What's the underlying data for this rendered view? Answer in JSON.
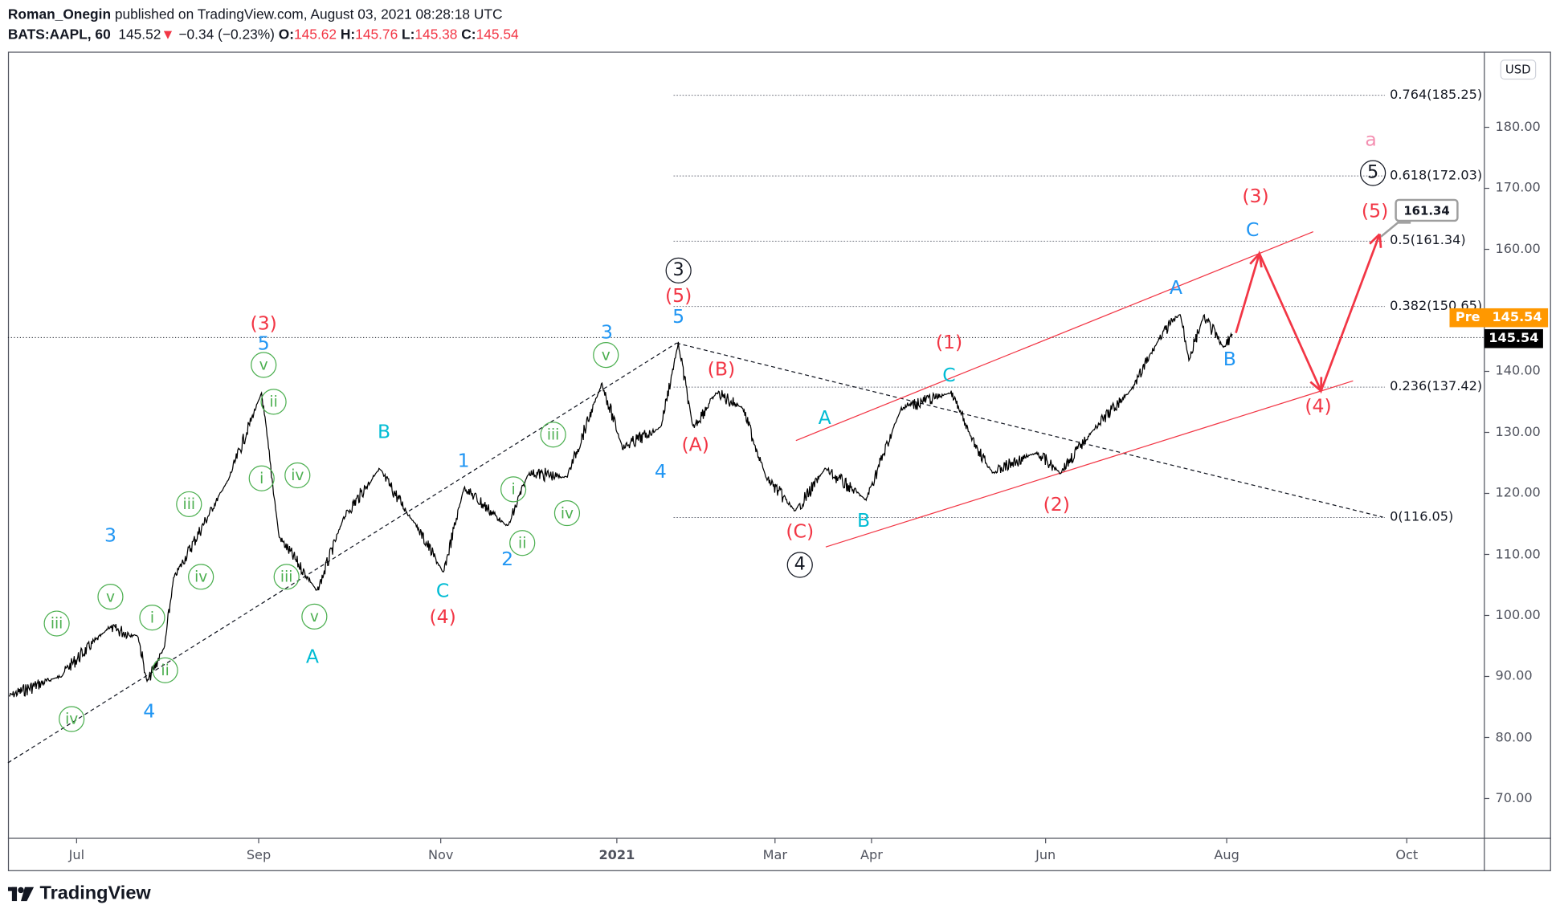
{
  "header": {
    "author": "Roman_Onegin",
    "published": "published on TradingView.com, August 03, 2021 08:28:18 UTC",
    "symbol": "BATS:AAPL, 60",
    "price": "145.52",
    "change": "−0.34 (−0.23%)",
    "o_label": "O:",
    "o": "145.62",
    "h_label": "H:",
    "h": "145.76",
    "l_label": "L:",
    "l": "145.38",
    "c_label": "C:",
    "c": "145.54"
  },
  "price_axis": {
    "currency": "USD",
    "ticks": [
      "180.00",
      "170.00",
      "160.00",
      "140.00",
      "130.00",
      "120.00",
      "110.00",
      "100.00",
      "90.00",
      "80.00",
      "70.00"
    ],
    "pre_label": "Pre",
    "pre_price": "145.54",
    "last_price": "145.54"
  },
  "time_axis": {
    "ticks": [
      "Jul",
      "Sep",
      "Nov",
      "2021",
      "Mar",
      "Apr",
      "Jun",
      "Aug",
      "Oct"
    ]
  },
  "callout": "161.34",
  "brand": "TradingView",
  "colors": {
    "red": "#f23645",
    "blue": "#2196f3",
    "teal": "#00bcd4",
    "green": "#4caf50",
    "black": "#131722",
    "pink": "#f48fb1",
    "orange": "#ff9800"
  },
  "chart_data": {
    "type": "line",
    "title": "BATS:AAPL, 60",
    "ylabel": "USD",
    "ylim": [
      65,
      195
    ],
    "xlim": [
      "2020-06-06",
      "2021-10-30"
    ],
    "price_series": [
      [
        "2020-06-08",
        86.8
      ],
      [
        "2020-06-25",
        90
      ],
      [
        "2020-07-12",
        98
      ],
      [
        "2020-07-22",
        96.6
      ],
      [
        "2020-07-25",
        89
      ],
      [
        "2020-07-31",
        95
      ],
      [
        "2020-08-03",
        106
      ],
      [
        "2020-08-22",
        122.6
      ],
      [
        "2020-09-02",
        136.5
      ],
      [
        "2020-09-08",
        112.9
      ],
      [
        "2020-09-21",
        104
      ],
      [
        "2020-09-30",
        116
      ],
      [
        "2020-10-12",
        124
      ],
      [
        "2020-10-25",
        114.5
      ],
      [
        "2020-11-03",
        107
      ],
      [
        "2020-11-10",
        121
      ],
      [
        "2020-11-25",
        114.5
      ],
      [
        "2020-12-02",
        123.4
      ],
      [
        "2020-12-15",
        122.6
      ],
      [
        "2020-12-27",
        138
      ],
      [
        "2021-01-03",
        127.5
      ],
      [
        "2021-01-16",
        130.8
      ],
      [
        "2021-01-22",
        144.6
      ],
      [
        "2021-01-27",
        130.8
      ],
      [
        "2021-02-04",
        136.5
      ],
      [
        "2021-02-13",
        134
      ],
      [
        "2021-02-21",
        122.6
      ],
      [
        "2021-03-03",
        117
      ],
      [
        "2021-03-13",
        124
      ],
      [
        "2021-03-27",
        119
      ],
      [
        "2021-04-08",
        134
      ],
      [
        "2021-04-25",
        136.5
      ],
      [
        "2021-05-02",
        129
      ],
      [
        "2021-05-09",
        123.4
      ],
      [
        "2021-05-24",
        126.7
      ],
      [
        "2021-06-01",
        123.4
      ],
      [
        "2021-06-13",
        130.8
      ],
      [
        "2021-06-26",
        137.3
      ],
      [
        "2021-07-05",
        145.5
      ],
      [
        "2021-07-12",
        149.5
      ],
      [
        "2021-07-15",
        142
      ],
      [
        "2021-07-20",
        149
      ],
      [
        "2021-07-27",
        143.8
      ],
      [
        "2021-07-30",
        146.3
      ]
    ],
    "fib_levels": [
      {
        "label": "0.764(185.25)",
        "price": 185.25
      },
      {
        "label": "0.618(172.03)",
        "price": 172.03
      },
      {
        "label": "0.5(161.34)",
        "price": 161.34
      },
      {
        "label": "0.382(150.65)",
        "price": 150.65
      },
      {
        "label": "0.236(137.42)",
        "price": 137.42
      },
      {
        "label": "0(116.05)",
        "price": 116.05
      }
    ],
    "current_price_line": 145.54,
    "forecast_path": [
      [
        "2021-07-31",
        146.3
      ],
      [
        "2021-08-08",
        159.3
      ],
      [
        "2021-08-29",
        136.8
      ],
      [
        "2021-09-18",
        162.5
      ]
    ],
    "wave_labels": [
      {
        "text": "(3)",
        "color": "red"
      },
      {
        "text": "5",
        "color": "blue"
      },
      {
        "text": "v",
        "color": "green",
        "circled": true
      },
      {
        "text": "ii",
        "color": "green",
        "circled": true
      },
      {
        "text": "i",
        "color": "green",
        "circled": true
      },
      {
        "text": "iv",
        "color": "green",
        "circled": true
      },
      {
        "text": "iii",
        "color": "green",
        "circled": true
      },
      {
        "text": "v",
        "color": "green",
        "circled": true
      },
      {
        "text": "A",
        "color": "teal"
      },
      {
        "text": "B",
        "color": "teal"
      },
      {
        "text": "C",
        "color": "teal"
      },
      {
        "text": "(4)",
        "color": "red"
      },
      {
        "text": "1",
        "color": "blue"
      },
      {
        "text": "2",
        "color": "blue"
      },
      {
        "text": "i",
        "color": "green",
        "circled": true
      },
      {
        "text": "ii",
        "color": "green",
        "circled": true
      },
      {
        "text": "iii",
        "color": "green",
        "circled": true
      },
      {
        "text": "iv",
        "color": "green",
        "circled": true
      },
      {
        "text": "3",
        "color": "blue"
      },
      {
        "text": "v",
        "color": "green",
        "circled": true
      },
      {
        "text": "4",
        "color": "blue"
      },
      {
        "text": "3",
        "color": "blue"
      },
      {
        "text": "v",
        "color": "green",
        "circled": true
      },
      {
        "text": "iii",
        "color": "green",
        "circled": true
      },
      {
        "text": "i",
        "color": "green",
        "circled": true
      },
      {
        "text": "iv",
        "color": "green",
        "circled": true
      },
      {
        "text": "iii",
        "color": "green",
        "circled": true
      },
      {
        "text": "ii",
        "color": "green",
        "circled": true
      },
      {
        "text": "iv",
        "color": "green",
        "circled": true
      },
      {
        "text": "4",
        "color": "blue"
      },
      {
        "text": "3",
        "color": "black",
        "circled": true
      },
      {
        "text": "(5)",
        "color": "red"
      },
      {
        "text": "5",
        "color": "blue"
      },
      {
        "text": "(B)",
        "color": "red"
      },
      {
        "text": "(A)",
        "color": "red"
      },
      {
        "text": "(C)",
        "color": "red"
      },
      {
        "text": "4",
        "color": "black",
        "circled": true
      },
      {
        "text": "A",
        "color": "teal"
      },
      {
        "text": "B",
        "color": "teal"
      },
      {
        "text": "C",
        "color": "teal"
      },
      {
        "text": "(1)",
        "color": "red"
      },
      {
        "text": "(2)",
        "color": "red"
      },
      {
        "text": "A",
        "color": "blue"
      },
      {
        "text": "B",
        "color": "blue"
      },
      {
        "text": "C",
        "color": "blue"
      },
      {
        "text": "(3)",
        "color": "red"
      },
      {
        "text": "(4)",
        "color": "red"
      },
      {
        "text": "(5)",
        "color": "red"
      },
      {
        "text": "a",
        "color": "pink"
      },
      {
        "text": "5",
        "color": "black",
        "circled": true
      }
    ]
  }
}
